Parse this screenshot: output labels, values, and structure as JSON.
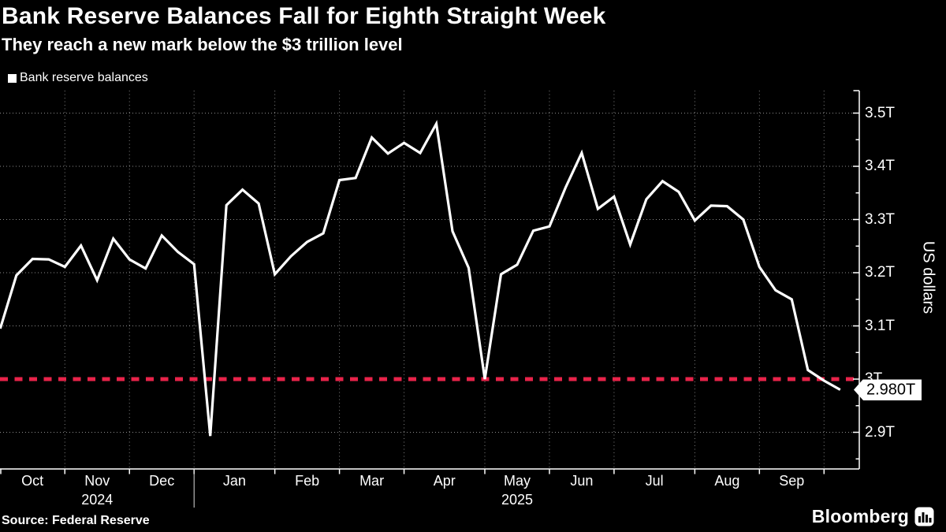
{
  "header": {
    "title": "Bank Reserve Balances Fall for Eighth Straight Week",
    "subtitle": "They reach a new mark below the $3 trillion level"
  },
  "legend": {
    "label": "Bank reserve balances"
  },
  "source": {
    "text": "Source: Federal Reserve"
  },
  "brand": {
    "name": "Bloomberg",
    "icon": "bloomberg-bar-chart-icon"
  },
  "colors": {
    "background": "#000000",
    "text": "#ffffff",
    "series_line": "#ffffff",
    "grid": "#8c8c8c",
    "reference_line": "#e8234a",
    "callout_bg": "#ffffff",
    "callout_text": "#000000"
  },
  "y_axis": {
    "title": "US dollars",
    "ticks": [
      {
        "label": "3.5T",
        "value": 3.5
      },
      {
        "label": "3.4T",
        "value": 3.4
      },
      {
        "label": "3.3T",
        "value": 3.3
      },
      {
        "label": "3.2T",
        "value": 3.2
      },
      {
        "label": "3.1T",
        "value": 3.1
      },
      {
        "label": "3T",
        "value": 3.0
      },
      {
        "label": "2.9T",
        "value": 2.9
      }
    ],
    "minor_tick_values": [
      2.85,
      2.95,
      3.05,
      3.15,
      3.25,
      3.35,
      3.45
    ]
  },
  "x_axis": {
    "month_labels": [
      "Oct",
      "Nov",
      "Dec",
      "Jan",
      "Feb",
      "Mar",
      "Apr",
      "May",
      "Jun",
      "Jul",
      "Aug",
      "Sep"
    ],
    "year_labels": [
      {
        "text": "2024",
        "month_index": 1
      },
      {
        "text": "2025",
        "month_index": 7
      }
    ]
  },
  "callout": {
    "label": "2.980T",
    "value": 2.98
  },
  "chart_data": {
    "type": "line",
    "title": "Bank Reserve Balances Fall for Eighth Straight Week",
    "subtitle": "They reach a new mark below the $3 trillion level",
    "ylabel": "US dollars",
    "unit": "trillions of US dollars",
    "grid": "dotted",
    "legend_position": "top-left",
    "source": "Federal Reserve",
    "y_tick_labels": [
      "3.5T",
      "3.4T",
      "3.3T",
      "3.2T",
      "3.1T",
      "3T",
      "2.9T"
    ],
    "y_range_shown": [
      2.84,
      3.54
    ],
    "reference_line": {
      "value": 3.0,
      "style": "dashed",
      "color": "#e8234a"
    },
    "last_point_label": "2.980T",
    "series": [
      {
        "name": "Bank reserve balances",
        "color": "#ffffff",
        "dates": [
          "2024-10-02",
          "2024-10-09",
          "2024-10-16",
          "2024-10-23",
          "2024-10-30",
          "2024-11-06",
          "2024-11-13",
          "2024-11-20",
          "2024-11-27",
          "2024-12-04",
          "2024-12-11",
          "2024-12-18",
          "2024-12-25",
          "2025-01-01",
          "2025-01-08",
          "2025-01-15",
          "2025-01-22",
          "2025-01-29",
          "2025-02-05",
          "2025-02-12",
          "2025-02-19",
          "2025-02-26",
          "2025-03-05",
          "2025-03-12",
          "2025-03-19",
          "2025-03-26",
          "2025-04-02",
          "2025-04-09",
          "2025-04-16",
          "2025-04-23",
          "2025-04-30",
          "2025-05-07",
          "2025-05-14",
          "2025-05-21",
          "2025-05-28",
          "2025-06-04",
          "2025-06-11",
          "2025-06-18",
          "2025-06-25",
          "2025-07-02",
          "2025-07-09",
          "2025-07-16",
          "2025-07-23",
          "2025-07-30",
          "2025-08-06",
          "2025-08-13",
          "2025-08-20",
          "2025-08-27",
          "2025-09-03",
          "2025-09-10",
          "2025-09-17",
          "2025-09-24",
          "2025-10-01"
        ],
        "values": [
          3.095,
          3.195,
          3.226,
          3.225,
          3.211,
          3.251,
          3.186,
          3.264,
          3.225,
          3.208,
          3.27,
          3.239,
          3.216,
          2.893,
          3.327,
          3.356,
          3.33,
          3.197,
          3.231,
          3.258,
          3.274,
          3.374,
          3.378,
          3.454,
          3.424,
          3.444,
          3.425,
          3.48,
          3.278,
          3.209,
          3.0,
          3.197,
          3.215,
          3.279,
          3.287,
          3.36,
          3.425,
          3.32,
          3.343,
          3.253,
          3.338,
          3.372,
          3.352,
          3.298,
          3.326,
          3.325,
          3.3,
          3.211,
          3.167,
          3.15,
          3.017,
          2.997,
          2.98
        ]
      }
    ]
  }
}
